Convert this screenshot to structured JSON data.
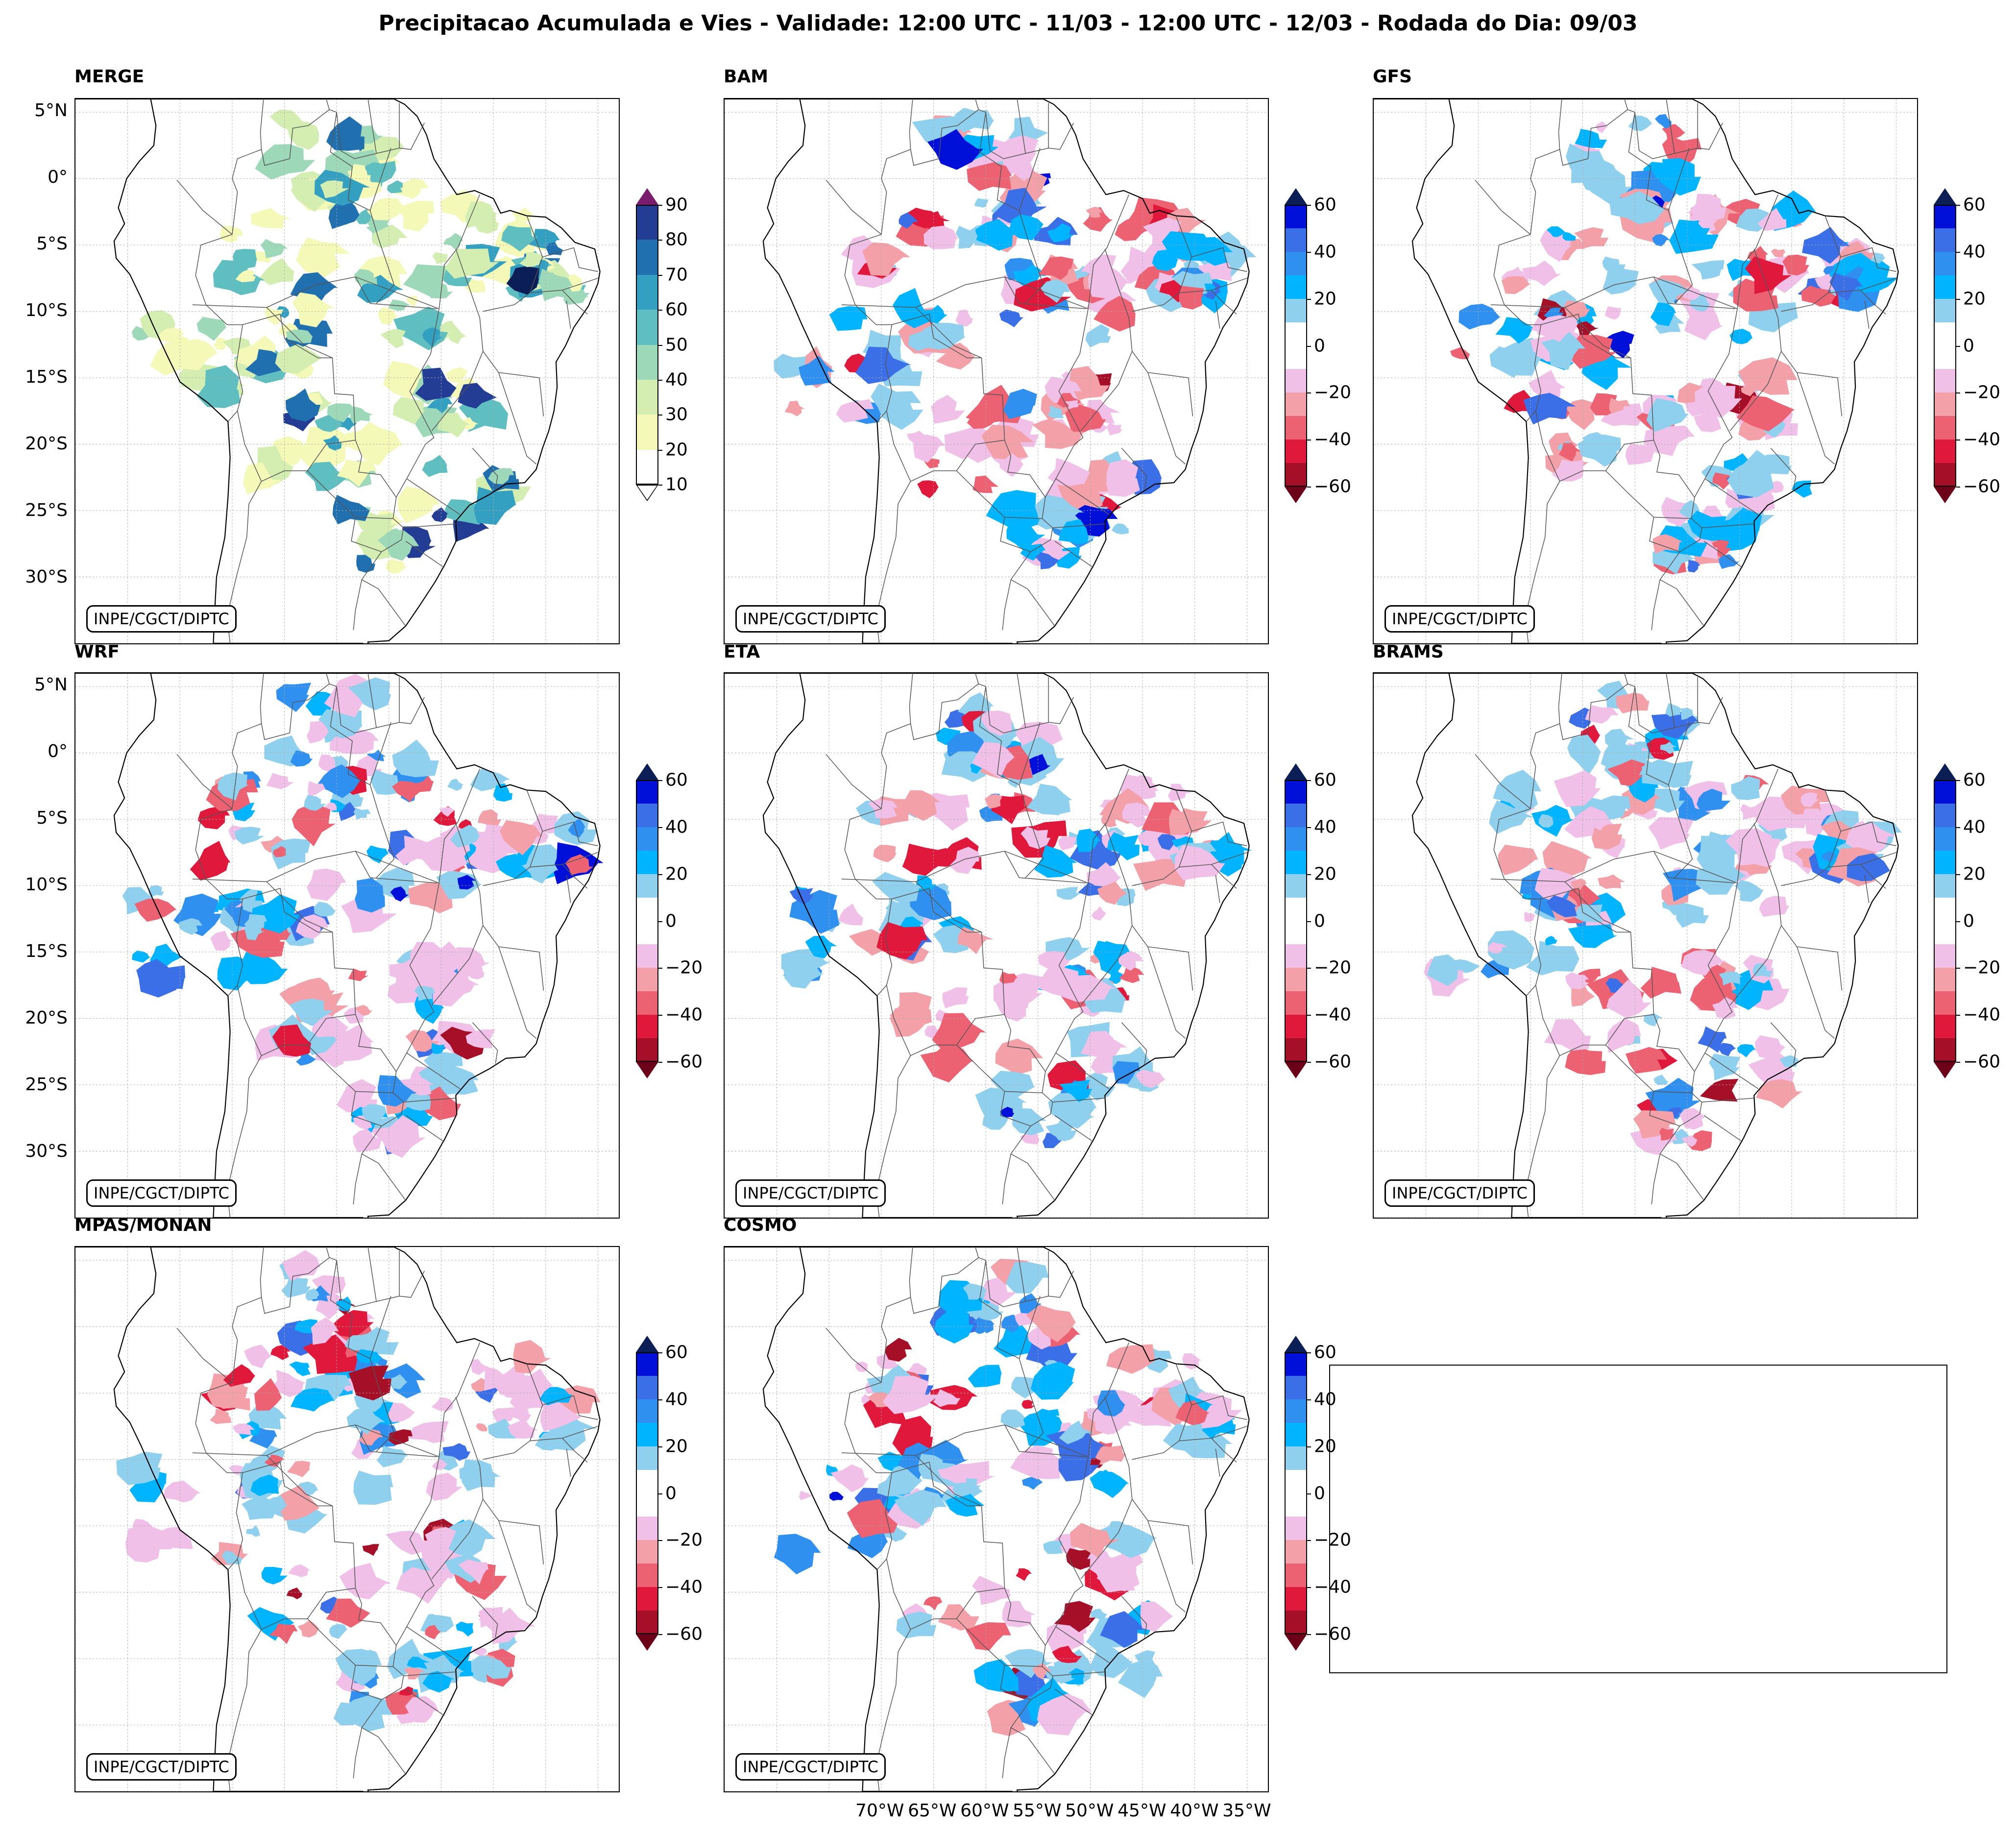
{
  "figure": {
    "title": "Precipitacao Acumulada e Vies - Validade: 12:00 UTC - 11/03 - 12:00 UTC - 12/03 - Rodada do Dia: 09/03",
    "credit": "INPE/CGCT/DIPTC"
  },
  "panels": [
    {
      "name": "MERGE",
      "kind": "precip"
    },
    {
      "name": "BAM",
      "kind": "bias"
    },
    {
      "name": "GFS",
      "kind": "bias"
    },
    {
      "name": "WRF",
      "kind": "bias"
    },
    {
      "name": "ETA",
      "kind": "bias"
    },
    {
      "name": "BRAMS",
      "kind": "bias"
    },
    {
      "name": "MPAS/MONAN",
      "kind": "bias"
    },
    {
      "name": "COSMO",
      "kind": "bias"
    }
  ],
  "latitude_labels": [
    "5°N",
    "0°",
    "5°S",
    "10°S",
    "15°S",
    "20°S",
    "25°S",
    "30°S"
  ],
  "longitude_labels": [
    "70°W",
    "65°W",
    "60°W",
    "55°W",
    "50°W",
    "45°W",
    "40°W",
    "35°W"
  ],
  "colorbars": {
    "precip": {
      "ticks": [
        "90",
        "80",
        "70",
        "60",
        "50",
        "40",
        "30",
        "20",
        "10"
      ],
      "colors": [
        "#ffffff",
        "#f4f9b8",
        "#d4eeb1",
        "#9dd9b8",
        "#5fbec0",
        "#339fc1",
        "#2070b0",
        "#233d95",
        "#0c1e56"
      ],
      "top_arrow": "#7a1d6e",
      "bottom_arrow": "#ffffff"
    },
    "bias": {
      "ticks": [
        "60",
        "40",
        "20",
        "0",
        "−20",
        "−40",
        "−60"
      ],
      "colors": [
        "#0010d8",
        "#3b6fe8",
        "#2f90f0",
        "#00b4ff",
        "#8fd0ee",
        "#ffffff",
        "#ffffff",
        "#f0c0e8",
        "#f3a0a8",
        "#ec6272",
        "#e0183c",
        "#a50f28"
      ],
      "top_arrow": "#0c1e56",
      "bottom_arrow": "#6b0018"
    }
  }
}
